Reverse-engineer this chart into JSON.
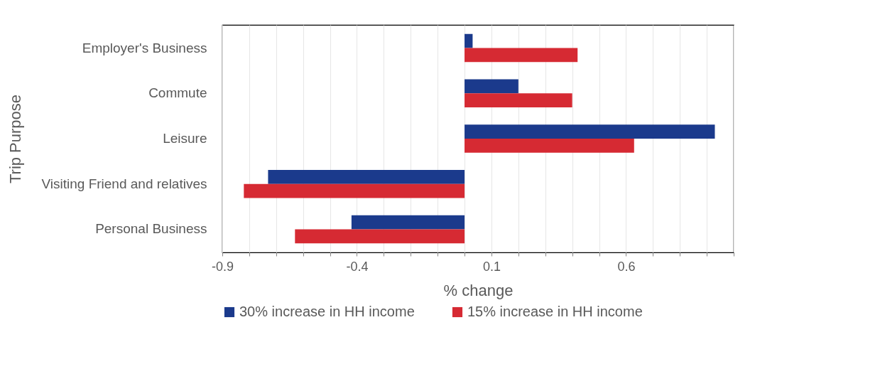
{
  "chart_data": {
    "type": "bar",
    "orientation": "horizontal",
    "xlabel": "% change",
    "ylabel": "Trip Purpose",
    "categories": [
      "Employer's Business",
      "Commute",
      "Leisure",
      "Visiting Friend and relatives",
      "Personal Business"
    ],
    "series": [
      {
        "name": "30% increase in HH income",
        "color": "#1b3a8c",
        "values": [
          0.03,
          0.2,
          0.93,
          -0.73,
          -0.42
        ]
      },
      {
        "name": "15% increase in HH income",
        "color": "#d62a33",
        "values": [
          0.42,
          0.4,
          0.63,
          -0.82,
          -0.63
        ]
      }
    ],
    "xlim": [
      -0.9,
      1.0
    ],
    "xticks": [
      -0.9,
      {
        "value": -0.8,
        "label": null
      },
      {
        "value": -0.7,
        "label": null
      },
      {
        "value": -0.6,
        "label": null
      },
      {
        "value": -0.5,
        "label": null
      },
      -0.4,
      {
        "value": -0.3,
        "label": null
      },
      {
        "value": -0.2,
        "label": null
      },
      {
        "value": -0.1,
        "label": null
      },
      {
        "value": 0,
        "label": null
      },
      0.1,
      {
        "value": 0.2,
        "label": null
      },
      {
        "value": 0.3,
        "label": null
      },
      {
        "value": 0.4,
        "label": null
      },
      {
        "value": 0.5,
        "label": null
      },
      0.6,
      {
        "value": 0.7,
        "label": null
      },
      {
        "value": 0.8,
        "label": null
      },
      {
        "value": 0.9,
        "label": null
      },
      {
        "value": 1.0,
        "label": null
      }
    ],
    "grid": "x",
    "legend": "bottom"
  }
}
